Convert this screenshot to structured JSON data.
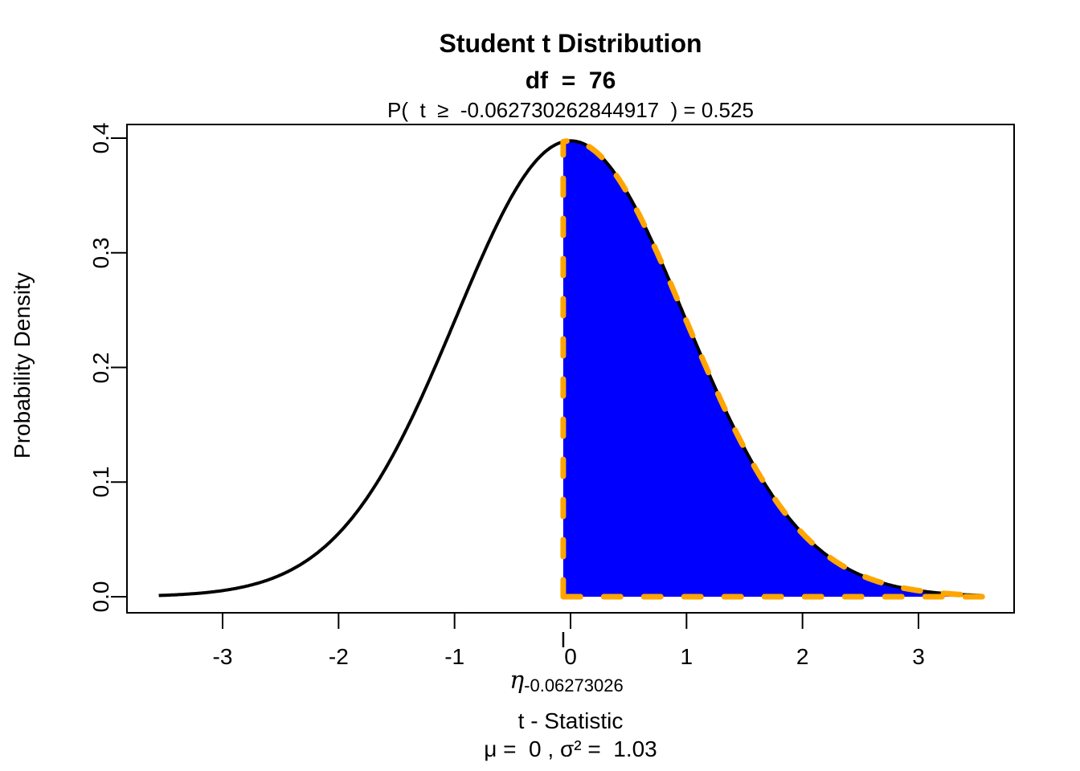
{
  "figure": {
    "title": "Student t Distribution",
    "df_line": "df  =  76",
    "prob_line": "P(  t  ≥  -0.062730262844917  ) = 0.525",
    "ylabel": "Probability Density",
    "xlabel": "t - Statistic",
    "params_line": "μ =  0 , σ² =  1.03",
    "eta_symbol": "η",
    "eta_subscript": "-0.06273026"
  },
  "chart_data": {
    "type": "area",
    "title": "Student t Distribution",
    "subtitle": "df  =  76",
    "annotation": "P(  t  ≥  -0.062730262844917  ) = 0.525",
    "xlabel": "t - Statistic",
    "ylabel": "Probability Density",
    "distribution": "student-t",
    "df": 76,
    "t_statistic": -0.062730262844917,
    "t_statistic_short": "-0.06273026",
    "probability": 0.525,
    "tail": "right",
    "mu": 0,
    "sigma_squared": 1.03,
    "curve_range": [
      -3.55,
      3.55
    ],
    "xlim": [
      -3.83,
      3.83
    ],
    "ylim": [
      0,
      0.4
    ],
    "x_ticks": [
      -3,
      -2,
      -1,
      0,
      1,
      2,
      3
    ],
    "y_ticks": [
      "0.0",
      "0.1",
      "0.2",
      "0.3",
      "0.4"
    ],
    "grid": false,
    "legend": "none",
    "colors": {
      "curve": "#000000",
      "fill": "#0000FF",
      "dash": "#FFA500",
      "text": "#000000",
      "background": "#FFFFFF"
    },
    "curve_points": {
      "t": [
        -3.55,
        -3.0,
        -2.5,
        -2.0,
        -1.5,
        -1.0,
        -0.5,
        -0.0627,
        0.0,
        0.5,
        1.0,
        1.5,
        2.0,
        2.5,
        3.0,
        3.55
      ],
      "density": [
        0.0011,
        0.0053,
        0.0189,
        0.0552,
        0.1293,
        0.2404,
        0.3504,
        0.3968,
        0.3976,
        0.3504,
        0.2404,
        0.1293,
        0.0552,
        0.0189,
        0.0053,
        0.0011
      ]
    }
  }
}
